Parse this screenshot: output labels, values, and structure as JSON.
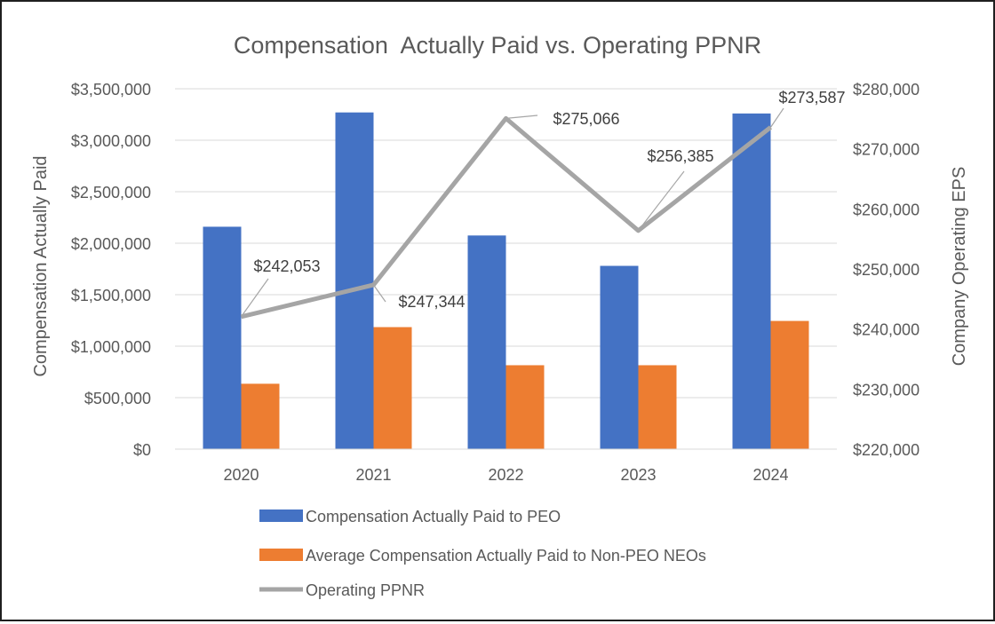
{
  "chart_data": {
    "type": "bar",
    "title": "Compensation  Actually Paid vs. Operating PPNR",
    "categories": [
      "2020",
      "2021",
      "2022",
      "2023",
      "2024"
    ],
    "ylabel": "Compensation Actually Paid",
    "y2label": "Company Operating EPS",
    "ylim": [
      0,
      3500000
    ],
    "y2lim": [
      220000,
      280000
    ],
    "yticks": [
      "$0",
      "$500,000",
      "$1,000,000",
      "$1,500,000",
      "$2,000,000",
      "$2,500,000",
      "$3,000,000",
      "$3,500,000"
    ],
    "y2ticks": [
      "$220,000",
      "$230,000",
      "$240,000",
      "$250,000",
      "$260,000",
      "$270,000",
      "$280,000"
    ],
    "series": [
      {
        "name": "Compensation Actually Paid to PEO",
        "kind": "bar",
        "axis": "left",
        "color": "#4472C4",
        "values": [
          2160000,
          3270000,
          2075000,
          1780000,
          3260000
        ]
      },
      {
        "name": "Average Compensation Actually Paid to Non-PEO NEOs",
        "kind": "bar",
        "axis": "left",
        "color": "#ED7D31",
        "values": [
          635000,
          1185000,
          815000,
          815000,
          1245000
        ]
      },
      {
        "name": "Operating PPNR",
        "kind": "line",
        "axis": "right",
        "color": "#A5A5A5",
        "values": [
          242053,
          247344,
          275066,
          256385,
          273587
        ],
        "labels": [
          "$242,053",
          "$247,344",
          "$275,066",
          "$256,385",
          "$273,587"
        ]
      }
    ],
    "legend_position": "bottom",
    "grid": true
  }
}
